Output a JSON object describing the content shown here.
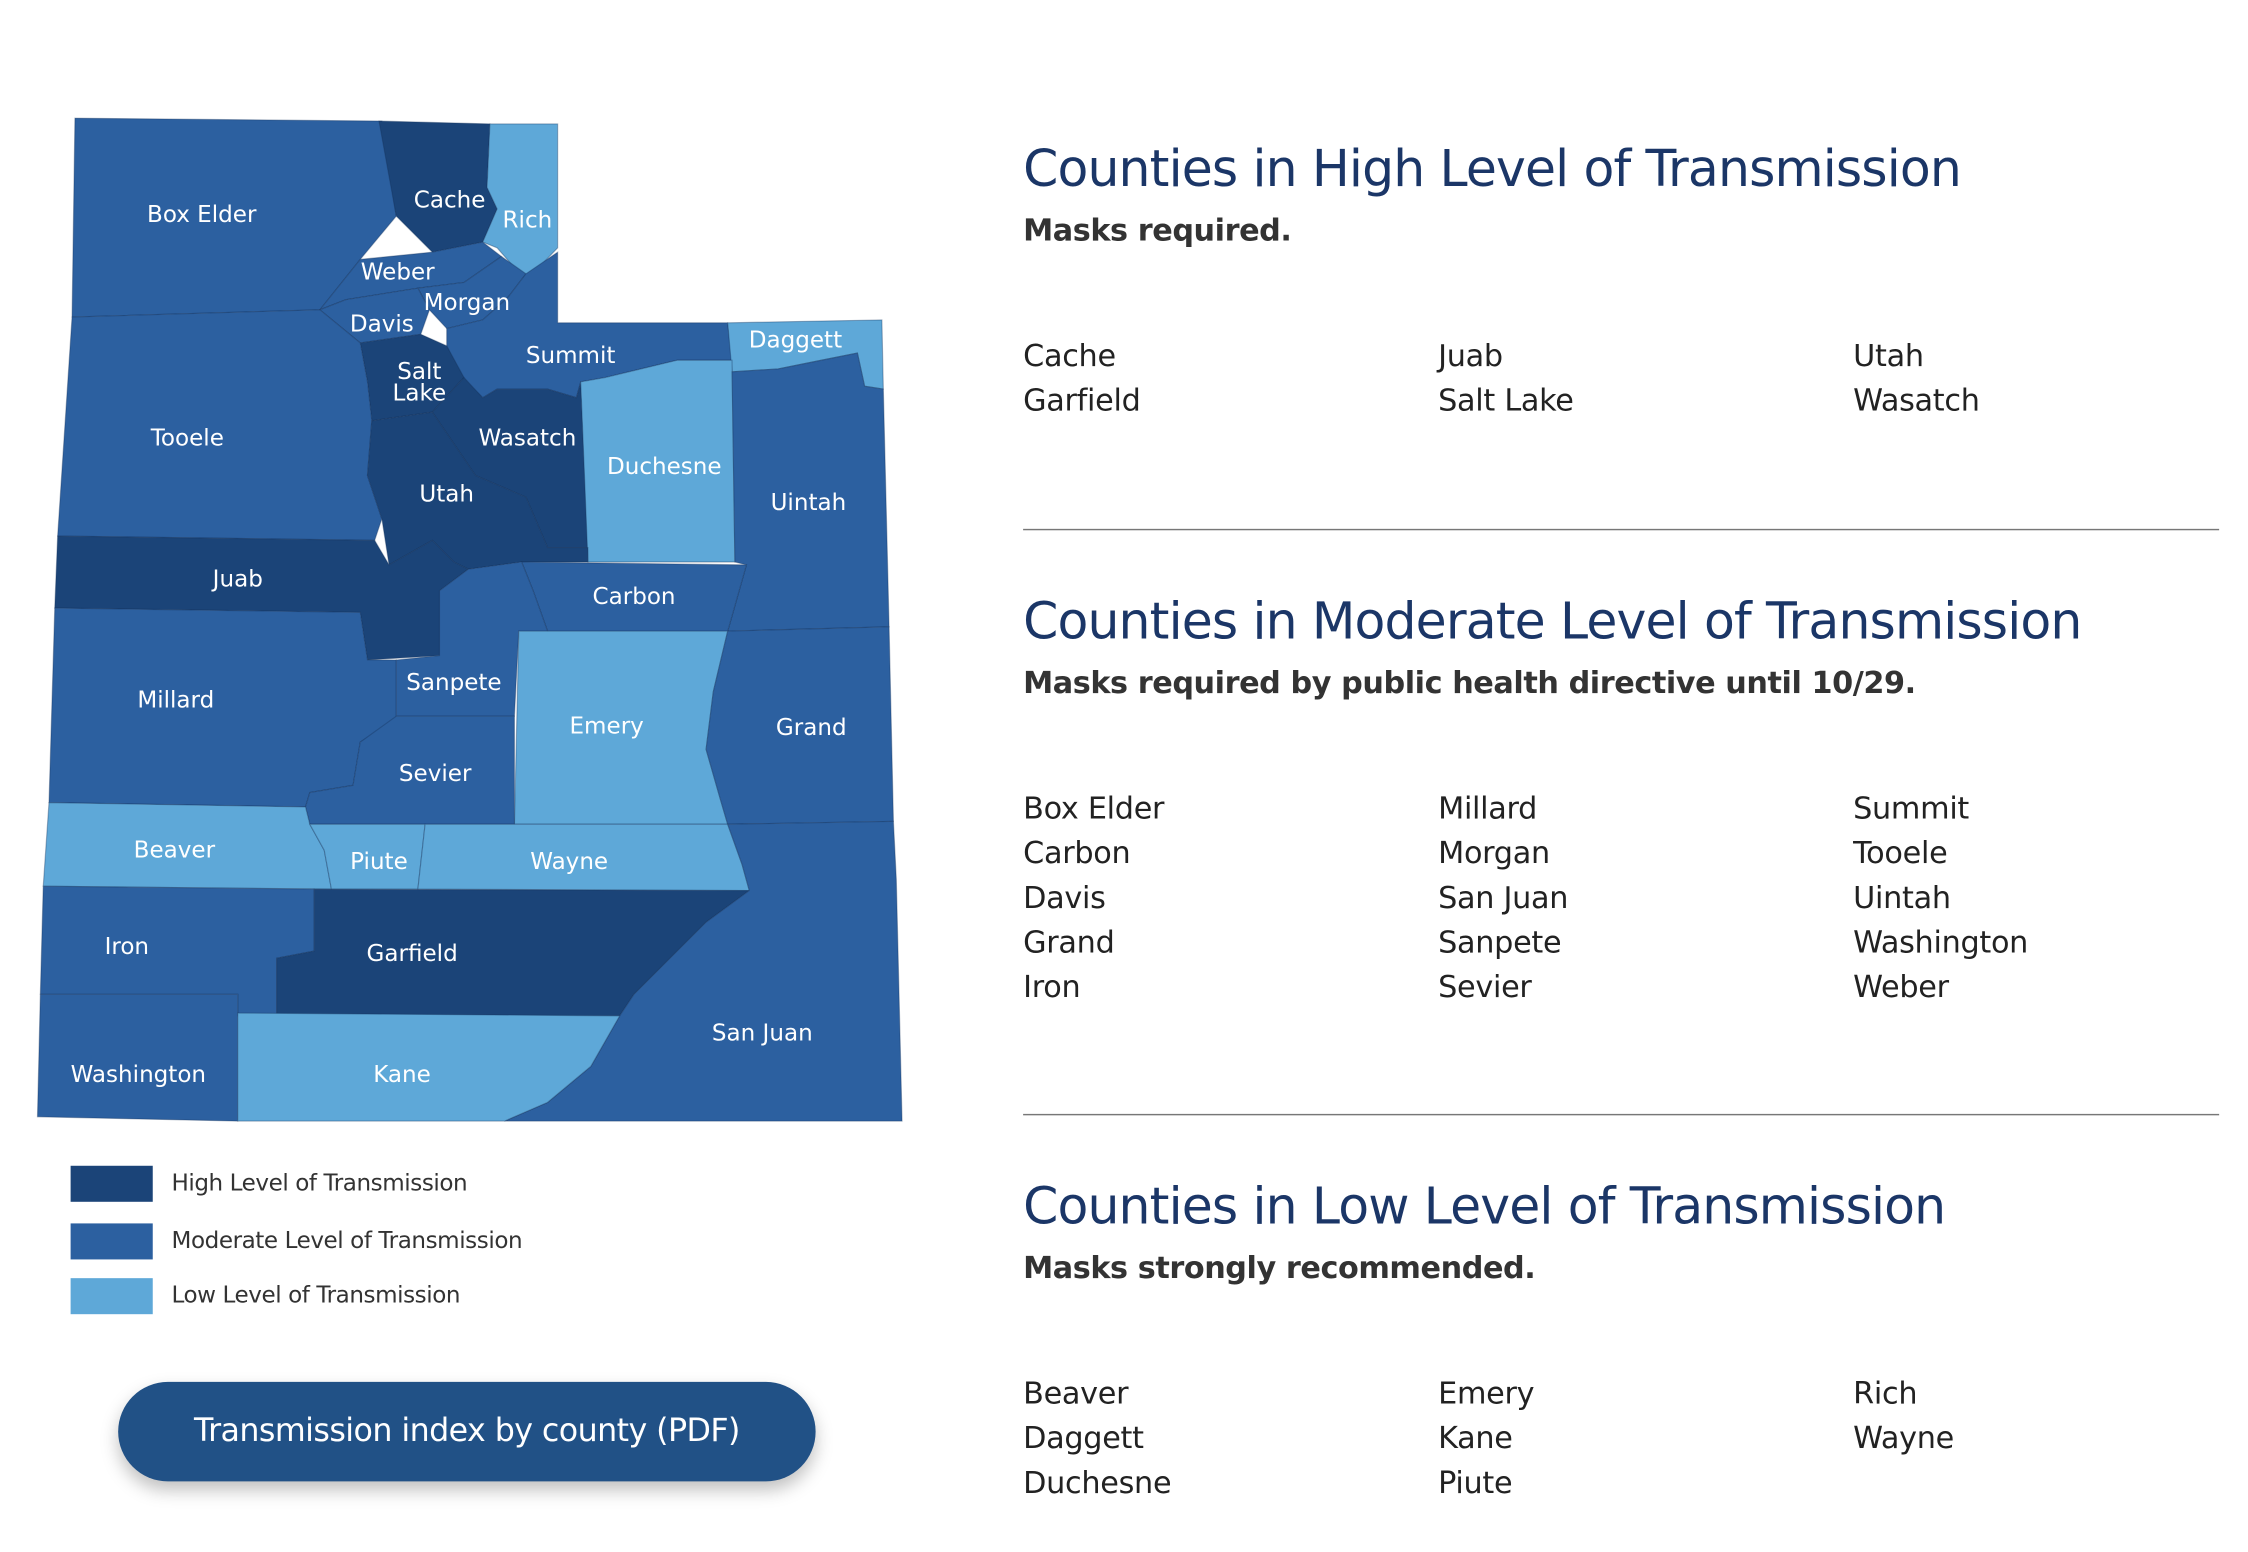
{
  "colors": {
    "high": "#1b4478",
    "moderate": "#2c60a0",
    "low": "#5ea8d8",
    "heading": "#1b3667",
    "button": "#215186"
  },
  "map": {
    "counties": [
      {
        "name": "Box Elder",
        "level": "moderate"
      },
      {
        "name": "Cache",
        "level": "high"
      },
      {
        "name": "Rich",
        "level": "low"
      },
      {
        "name": "Weber",
        "level": "moderate"
      },
      {
        "name": "Morgan",
        "level": "moderate"
      },
      {
        "name": "Davis",
        "level": "moderate"
      },
      {
        "name": "Summit",
        "level": "moderate"
      },
      {
        "name": "Daggett",
        "level": "low"
      },
      {
        "name": "Salt Lake",
        "level": "high"
      },
      {
        "name": "Tooele",
        "level": "moderate"
      },
      {
        "name": "Wasatch",
        "level": "high"
      },
      {
        "name": "Duchesne",
        "level": "low"
      },
      {
        "name": "Uintah",
        "level": "moderate"
      },
      {
        "name": "Utah",
        "level": "high"
      },
      {
        "name": "Juab",
        "level": "high"
      },
      {
        "name": "Carbon",
        "level": "moderate"
      },
      {
        "name": "Millard",
        "level": "moderate"
      },
      {
        "name": "Sanpete",
        "level": "moderate"
      },
      {
        "name": "Emery",
        "level": "low"
      },
      {
        "name": "Grand",
        "level": "moderate"
      },
      {
        "name": "Sevier",
        "level": "moderate"
      },
      {
        "name": "Beaver",
        "level": "low"
      },
      {
        "name": "Piute",
        "level": "low"
      },
      {
        "name": "Wayne",
        "level": "low"
      },
      {
        "name": "Iron",
        "level": "moderate"
      },
      {
        "name": "Garfield",
        "level": "high"
      },
      {
        "name": "San Juan",
        "level": "moderate"
      },
      {
        "name": "Washington",
        "level": "moderate"
      },
      {
        "name": "Kane",
        "level": "low"
      }
    ]
  },
  "legend": [
    {
      "label": "High Level of Transmission",
      "level": "high"
    },
    {
      "label": "Moderate Level of Transmission",
      "level": "moderate"
    },
    {
      "label": "Low Level of Transmission",
      "level": "low"
    }
  ],
  "pdf_button": {
    "label": "Transmission index by county (PDF)"
  },
  "sections": [
    {
      "title": "Counties in High Level of Transmission",
      "subtitle": "Masks required.",
      "columns": [
        [
          "Cache",
          "Garfield"
        ],
        [
          "Juab",
          "Salt Lake"
        ],
        [
          "Utah",
          "Wasatch"
        ]
      ]
    },
    {
      "title": "Counties in Moderate Level of Transmission",
      "subtitle": "Masks required by public health directive until 10/29.",
      "columns": [
        [
          "Box Elder",
          "Carbon",
          "Davis",
          "Grand",
          "Iron"
        ],
        [
          "Millard",
          "Morgan",
          "San Juan",
          "Sanpete",
          "Sevier"
        ],
        [
          "Summit",
          "Tooele",
          "Uintah",
          "Washington",
          "Weber"
        ]
      ]
    },
    {
      "title": "Counties in Low Level of Transmission",
      "subtitle": "Masks strongly recommended.",
      "columns": [
        [
          "Beaver",
          "Daggett",
          "Duchesne"
        ],
        [
          "Emery",
          "Kane",
          "Piute"
        ],
        [
          "Rich",
          "Wayne"
        ]
      ]
    }
  ]
}
